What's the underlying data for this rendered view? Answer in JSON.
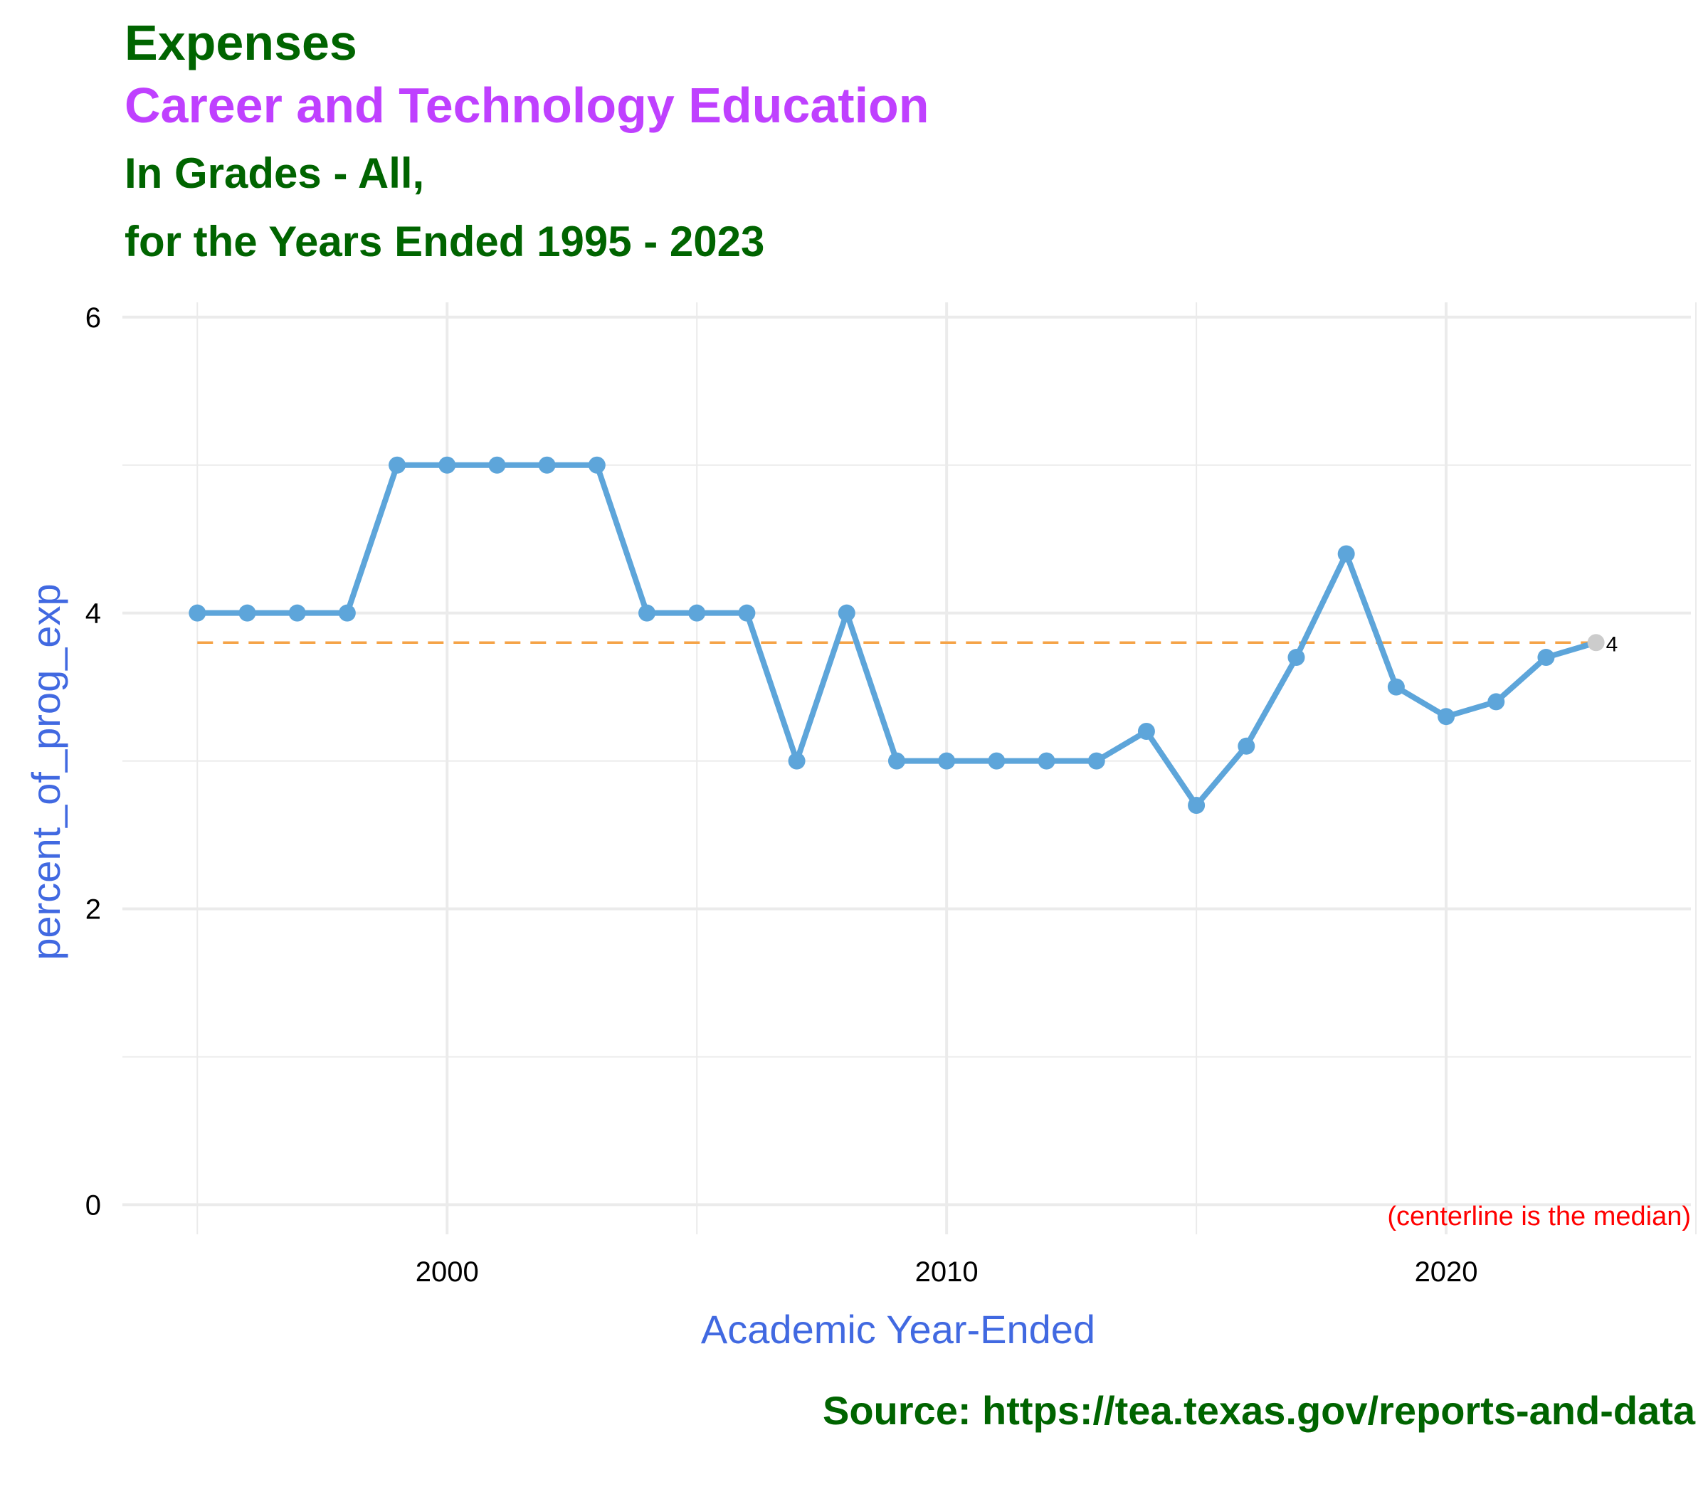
{
  "title": "Expenses",
  "subtitle_program": "Career and Technology Education",
  "subtitle_grades": "In Grades - All,",
  "subtitle_years": "for the Years Ended 1995 - 2023",
  "source": "Source:  https://tea.texas.gov/reports-and-data",
  "colors": {
    "title": "#006400",
    "program": "#BF40FF",
    "axis_label": "#4169E1",
    "line": "#5DA5DA",
    "median": "#F5A347",
    "last_point": "#CCCCCC",
    "note": "#FF0000",
    "grid": "#EBEBEB"
  },
  "chart_data": {
    "type": "line",
    "xlabel": "Academic Year-Ended",
    "ylabel": "percent_of_prog_exp",
    "xlim": [
      1993.5,
      2024.9
    ],
    "ylim": [
      -0.2,
      6.1
    ],
    "x_ticks": [
      2000,
      2010,
      2020
    ],
    "x_tick_labels": [
      "2000",
      "2010",
      "2020"
    ],
    "y_ticks": [
      0,
      2,
      4,
      6
    ],
    "y_tick_labels": [
      "0",
      "2",
      "4",
      "6"
    ],
    "grid": true,
    "x": [
      1995,
      1996,
      1997,
      1998,
      1999,
      2000,
      2001,
      2002,
      2003,
      2004,
      2005,
      2006,
      2007,
      2008,
      2009,
      2010,
      2011,
      2012,
      2013,
      2014,
      2015,
      2016,
      2017,
      2018,
      2019,
      2020,
      2021,
      2022,
      2023
    ],
    "y": [
      4,
      4,
      4,
      4,
      5,
      5,
      5,
      5,
      5,
      4,
      4,
      4,
      3,
      4,
      3,
      3,
      3,
      3,
      3,
      3.2,
      2.7,
      3.1,
      3.7,
      4.4,
      3.5,
      3.3,
      3.4,
      3.7,
      3.8
    ],
    "median": 3.8,
    "last_point_label": "4",
    "note": "(centerline is the median)"
  }
}
